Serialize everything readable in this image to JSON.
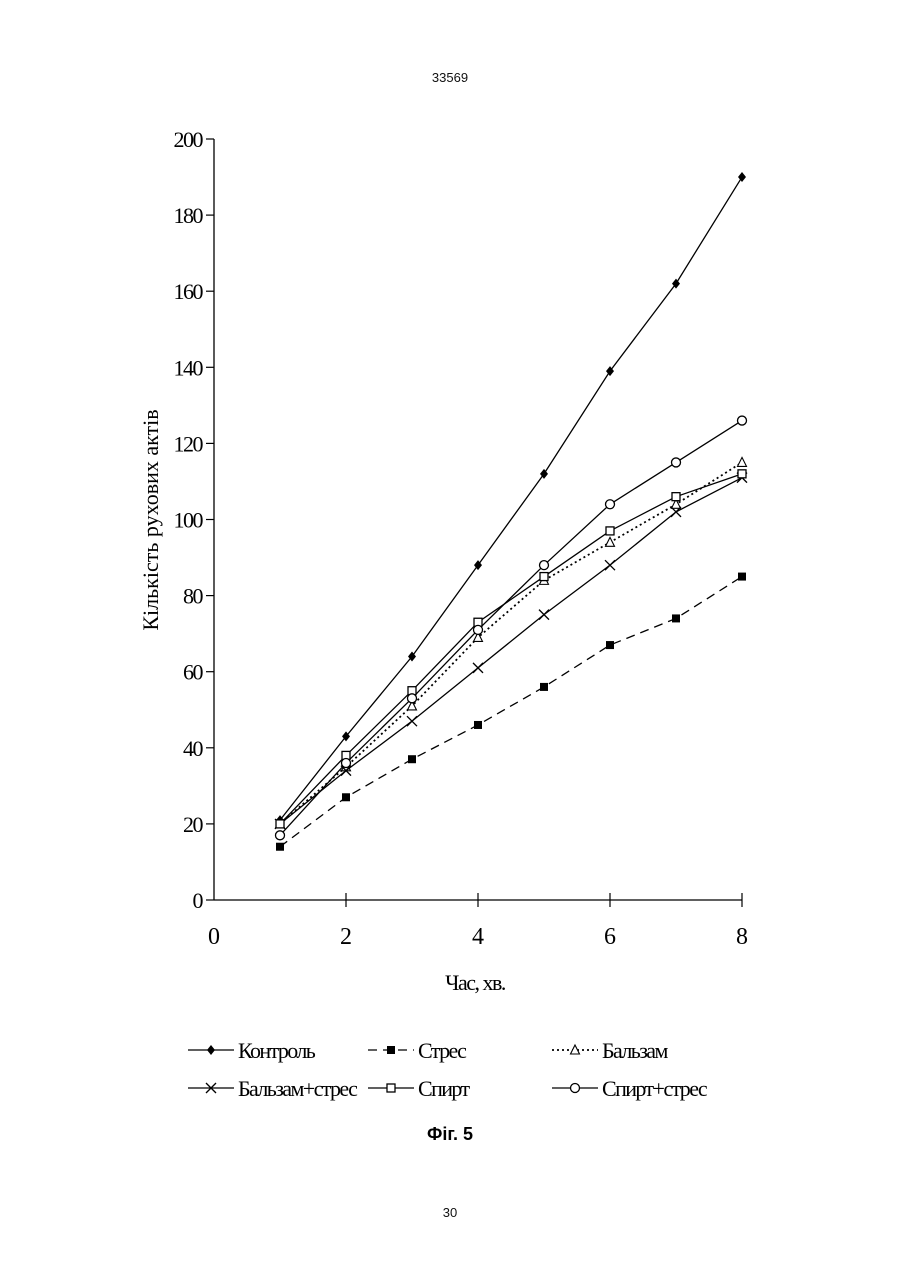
{
  "page": {
    "patent_number": "33569",
    "page_number": "30",
    "figure_caption": "Фіг. 5"
  },
  "chart_data": {
    "type": "line",
    "title": "",
    "xlabel": "Час, хв.",
    "ylabel": "Кількість рухових актів",
    "xlim": [
      0,
      8
    ],
    "ylim": [
      0,
      200
    ],
    "x_ticks": [
      0,
      2,
      4,
      6,
      8
    ],
    "y_ticks": [
      0,
      20,
      40,
      60,
      80,
      100,
      120,
      140,
      160,
      180,
      200
    ],
    "grid": false,
    "legend_position": "bottom",
    "x": [
      1,
      2,
      3,
      4,
      5,
      6,
      7,
      8
    ],
    "series": [
      {
        "name": "Контроль",
        "marker": "diamond",
        "line": "solid",
        "values": [
          21,
          43,
          64,
          88,
          112,
          139,
          162,
          190
        ]
      },
      {
        "name": "Стрес",
        "marker": "square-filled",
        "line": "dashed",
        "values": [
          14,
          27,
          37,
          46,
          56,
          67,
          74,
          85
        ]
      },
      {
        "name": "Бальзам",
        "marker": "triangle-open",
        "line": "dotted",
        "values": [
          20,
          35,
          51,
          69,
          84,
          94,
          104,
          115
        ]
      },
      {
        "name": "Бальзам+стрес",
        "marker": "x",
        "line": "solid",
        "values": [
          20,
          34,
          47,
          61,
          75,
          88,
          102,
          111
        ]
      },
      {
        "name": "Спирт",
        "marker": "square-open",
        "line": "solid",
        "values": [
          20,
          38,
          55,
          73,
          85,
          97,
          106,
          112
        ]
      },
      {
        "name": "Спирт+стрес",
        "marker": "circle-open",
        "line": "solid",
        "values": [
          17,
          36,
          53,
          71,
          88,
          104,
          115,
          126
        ]
      }
    ]
  }
}
